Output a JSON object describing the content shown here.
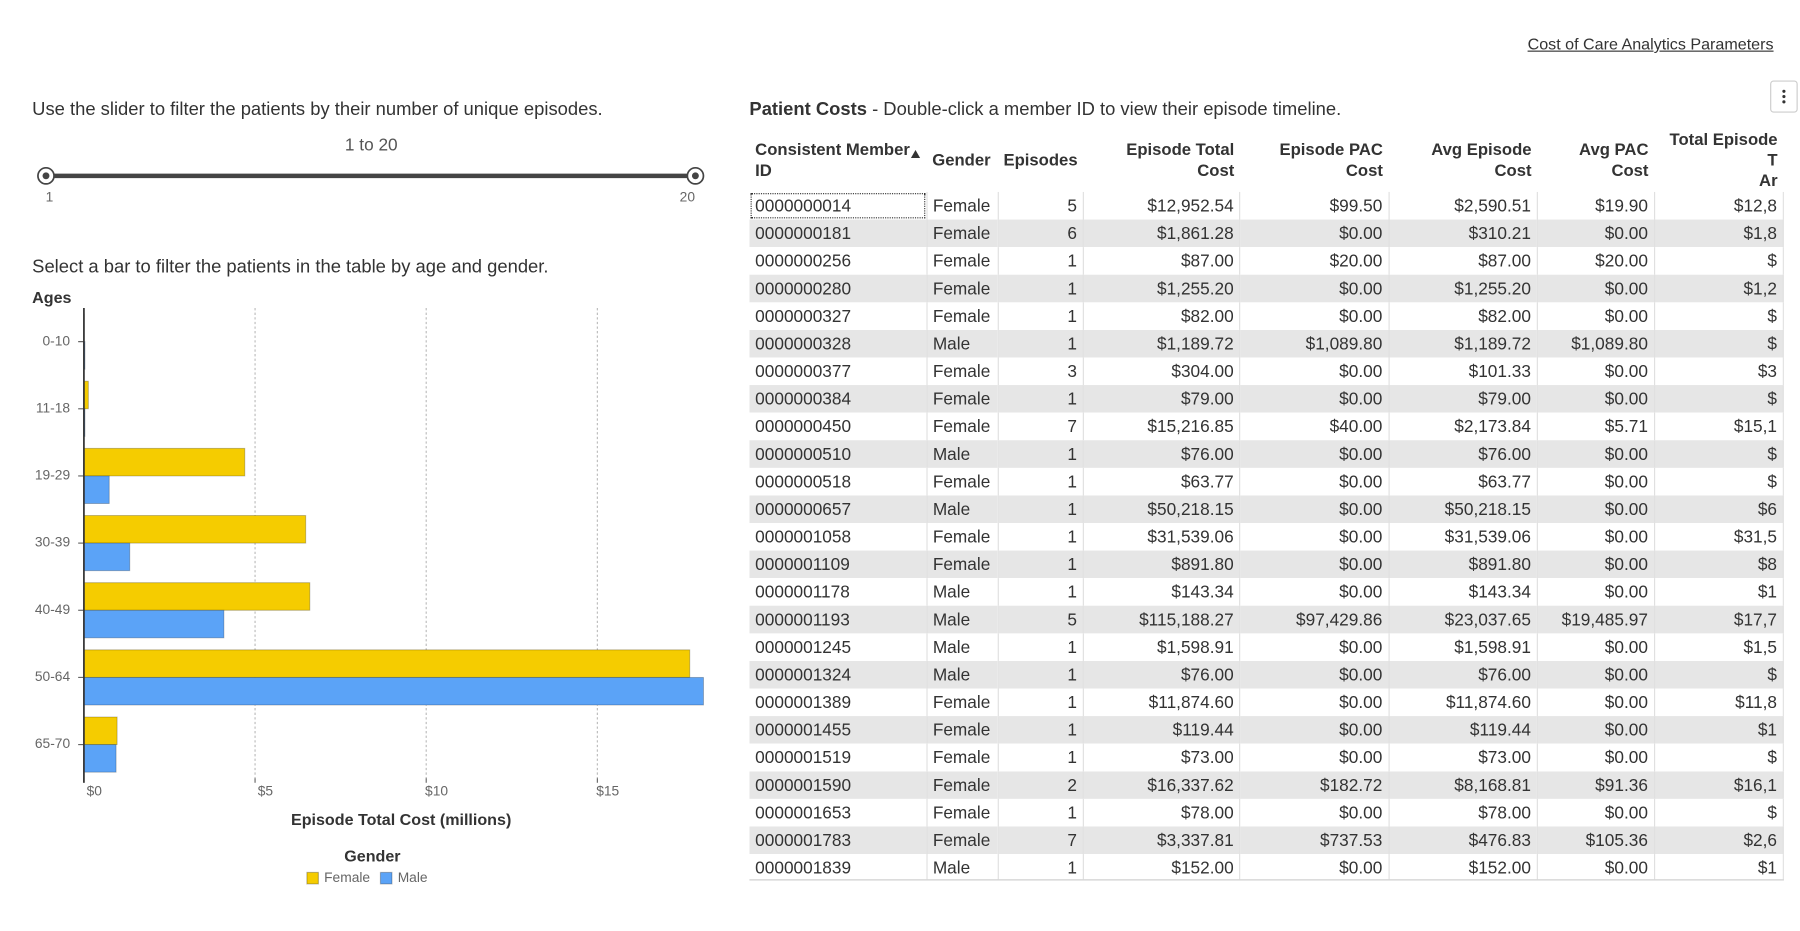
{
  "link": "Cost of Care Analytics Parameters",
  "slider": {
    "instruction": "Use the slider to filter the patients by their number of unique episodes.",
    "label": "1 to 20",
    "min": 1,
    "max": 20,
    "low": 1,
    "high": 20
  },
  "chart_instruction": "Select a bar to filter the patients in the table by age and gender.",
  "chart_data": {
    "type": "hbar",
    "ylabel": "Ages",
    "xlabel": "Episode Total Cost (millions)",
    "legend_title": "Gender",
    "categories": [
      "0-10",
      "11-18",
      "19-29",
      "30-39",
      "40-49",
      "50-64",
      "65-70"
    ],
    "series": [
      {
        "name": "Female",
        "color": "#f5cc00",
        "values": [
          0.01,
          0.13,
          4.7,
          6.48,
          6.6,
          17.7,
          0.97
        ]
      },
      {
        "name": "Male",
        "color": "#5ba3f7",
        "values": [
          0.03,
          0.03,
          0.74,
          1.34,
          4.09,
          18.1,
          0.94
        ]
      }
    ],
    "xlim": [
      0,
      18.2
    ],
    "xticks": [
      {
        "value": 0,
        "label": "$0"
      },
      {
        "value": 5,
        "label": "$5"
      },
      {
        "value": 10,
        "label": "$10"
      },
      {
        "value": 15,
        "label": "$15"
      }
    ],
    "grid": true
  },
  "table": {
    "title": "Patient Costs",
    "subtitle": " - Double-click a member ID to view their episode timeline.",
    "columns": [
      "Consistent Member ID",
      "Gender",
      "Episodes",
      "Episode Total Cost",
      "Episode PAC Cost",
      "Avg Episode Cost",
      "Avg PAC Cost",
      "Total Episode T\nAr"
    ],
    "rows": [
      [
        "0000000014",
        "Female",
        5,
        "$12,952.54",
        "$99.50",
        "$2,590.51",
        "$19.90",
        "$12,8"
      ],
      [
        "0000000181",
        "Female",
        6,
        "$1,861.28",
        "$0.00",
        "$310.21",
        "$0.00",
        "$1,8"
      ],
      [
        "0000000256",
        "Female",
        1,
        "$87.00",
        "$20.00",
        "$87.00",
        "$20.00",
        "$"
      ],
      [
        "0000000280",
        "Female",
        1,
        "$1,255.20",
        "$0.00",
        "$1,255.20",
        "$0.00",
        "$1,2"
      ],
      [
        "0000000327",
        "Female",
        1,
        "$82.00",
        "$0.00",
        "$82.00",
        "$0.00",
        "$"
      ],
      [
        "0000000328",
        "Male",
        1,
        "$1,189.72",
        "$1,089.80",
        "$1,189.72",
        "$1,089.80",
        "$"
      ],
      [
        "0000000377",
        "Female",
        3,
        "$304.00",
        "$0.00",
        "$101.33",
        "$0.00",
        "$3"
      ],
      [
        "0000000384",
        "Female",
        1,
        "$79.00",
        "$0.00",
        "$79.00",
        "$0.00",
        "$"
      ],
      [
        "0000000450",
        "Female",
        7,
        "$15,216.85",
        "$40.00",
        "$2,173.84",
        "$5.71",
        "$15,1"
      ],
      [
        "0000000510",
        "Male",
        1,
        "$76.00",
        "$0.00",
        "$76.00",
        "$0.00",
        "$"
      ],
      [
        "0000000518",
        "Female",
        1,
        "$63.77",
        "$0.00",
        "$63.77",
        "$0.00",
        "$"
      ],
      [
        "0000000657",
        "Male",
        1,
        "$50,218.15",
        "$0.00",
        "$50,218.15",
        "$0.00",
        "$6"
      ],
      [
        "0000001058",
        "Female",
        1,
        "$31,539.06",
        "$0.00",
        "$31,539.06",
        "$0.00",
        "$31,5"
      ],
      [
        "0000001109",
        "Female",
        1,
        "$891.80",
        "$0.00",
        "$891.80",
        "$0.00",
        "$8"
      ],
      [
        "0000001178",
        "Male",
        1,
        "$143.34",
        "$0.00",
        "$143.34",
        "$0.00",
        "$1"
      ],
      [
        "0000001193",
        "Male",
        5,
        "$115,188.27",
        "$97,429.86",
        "$23,037.65",
        "$19,485.97",
        "$17,7"
      ],
      [
        "0000001245",
        "Male",
        1,
        "$1,598.91",
        "$0.00",
        "$1,598.91",
        "$0.00",
        "$1,5"
      ],
      [
        "0000001324",
        "Male",
        1,
        "$76.00",
        "$0.00",
        "$76.00",
        "$0.00",
        "$"
      ],
      [
        "0000001389",
        "Female",
        1,
        "$11,874.60",
        "$0.00",
        "$11,874.60",
        "$0.00",
        "$11,8"
      ],
      [
        "0000001455",
        "Female",
        1,
        "$119.44",
        "$0.00",
        "$119.44",
        "$0.00",
        "$1"
      ],
      [
        "0000001519",
        "Female",
        1,
        "$73.00",
        "$0.00",
        "$73.00",
        "$0.00",
        "$"
      ],
      [
        "0000001590",
        "Female",
        2,
        "$16,337.62",
        "$182.72",
        "$8,168.81",
        "$91.36",
        "$16,1"
      ],
      [
        "0000001653",
        "Female",
        1,
        "$78.00",
        "$0.00",
        "$78.00",
        "$0.00",
        "$"
      ],
      [
        "0000001783",
        "Female",
        7,
        "$3,337.81",
        "$737.53",
        "$476.83",
        "$105.36",
        "$2,6"
      ],
      [
        "0000001839",
        "Male",
        1,
        "$152.00",
        "$0.00",
        "$152.00",
        "$0.00",
        "$1"
      ]
    ]
  }
}
